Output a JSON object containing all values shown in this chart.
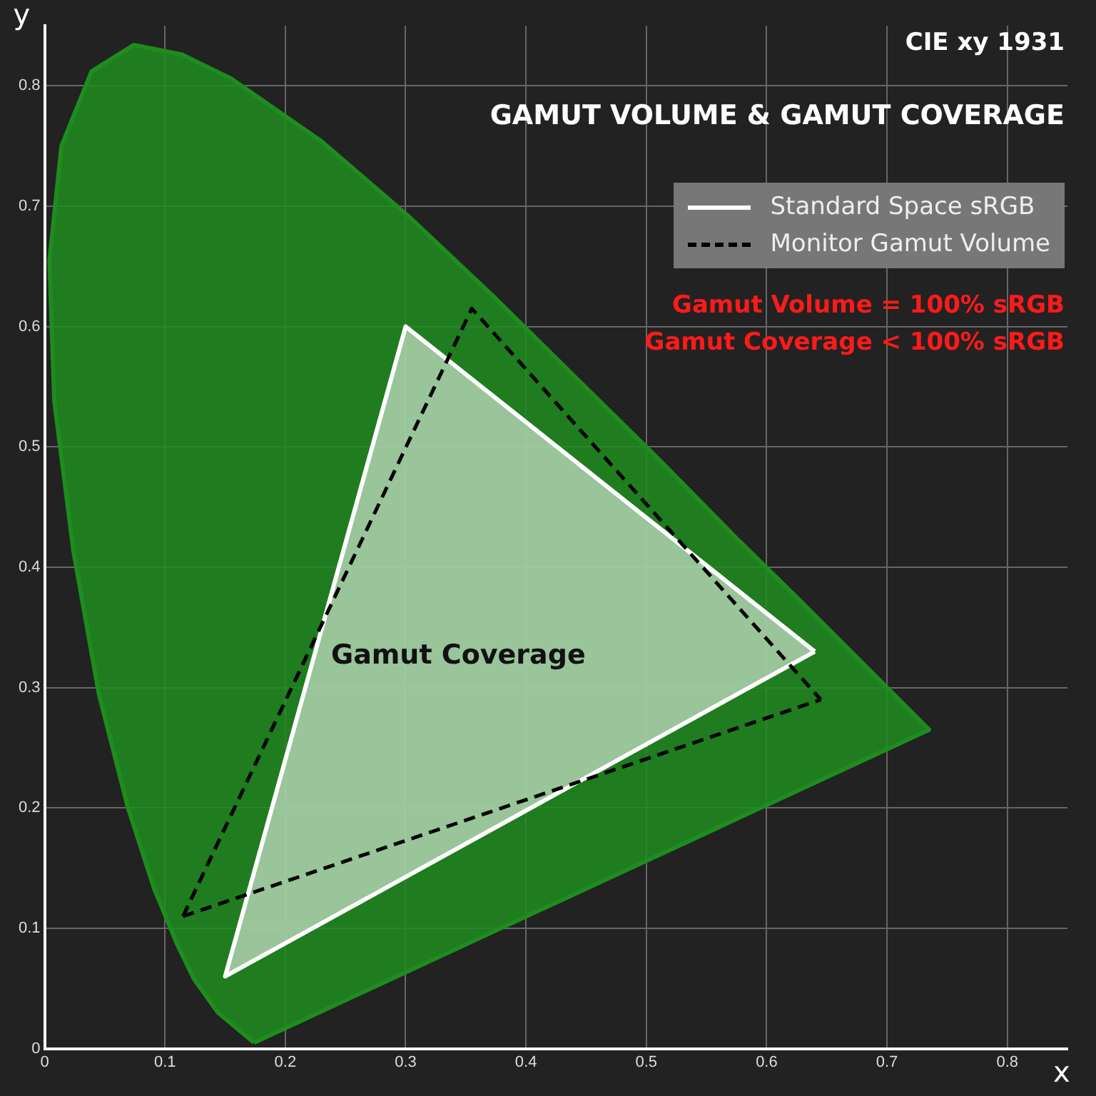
{
  "chart_data": {
    "type": "line",
    "title": "GAMUT VOLUME & GAMUT COVERAGE",
    "subtitle": "CIE xy 1931",
    "xlabel": "x",
    "ylabel": "y",
    "xlim": [
      0,
      0.85
    ],
    "ylim": [
      0,
      0.85
    ],
    "xticks": [
      0,
      0.1,
      0.2,
      0.3,
      0.4,
      0.5,
      0.6,
      0.7,
      0.8
    ],
    "yticks": [
      0,
      0.1,
      0.2,
      0.3,
      0.4,
      0.5,
      0.6,
      0.7,
      0.8
    ],
    "grid": true,
    "legend": "top right",
    "marker": "none",
    "series": [
      {
        "type": "area",
        "color": "#1e8c1e",
        "x": [
          0.174,
          0.144,
          0.124,
          0.11,
          0.091,
          0.069,
          0.045,
          0.024,
          0.008,
          0.004,
          0.014,
          0.039,
          0.074,
          0.114,
          0.155,
          0.23,
          0.302,
          0.373,
          0.444,
          0.513,
          0.575,
          0.627,
          0.692,
          0.719,
          0.735,
          0.174
        ],
        "values": [
          0.005,
          0.03,
          0.058,
          0.087,
          0.133,
          0.201,
          0.295,
          0.413,
          0.538,
          0.655,
          0.75,
          0.812,
          0.834,
          0.826,
          0.806,
          0.754,
          0.692,
          0.625,
          0.555,
          0.487,
          0.424,
          0.373,
          0.308,
          0.281,
          0.265,
          0.005
        ]
      },
      {
        "type": "area",
        "name": "Standard Space sRGB",
        "color": "#ffffff",
        "line_style": "solid",
        "x": [
          0.64,
          0.3,
          0.15,
          0.64
        ],
        "values": [
          0.33,
          0.6,
          0.06,
          0.33
        ]
      },
      {
        "type": "line",
        "name": "Monitor Gamut Volume",
        "color": "#000000",
        "line_style": "dashed",
        "x": [
          0.115,
          0.355,
          0.645
        ],
        "values": [
          0.11,
          0.615,
          0.29
        ]
      },
      {
        "type": "line",
        "color": "#000000",
        "line_style": "dashed",
        "x": [
          0.115,
          0.645
        ],
        "values": [
          0.11,
          0.29
        ]
      }
    ],
    "annotations": [
      "Gamut Volume = 100% sRGB",
      "Gamut Coverage < 100% sRGB",
      "Gamut Coverage"
    ]
  }
}
